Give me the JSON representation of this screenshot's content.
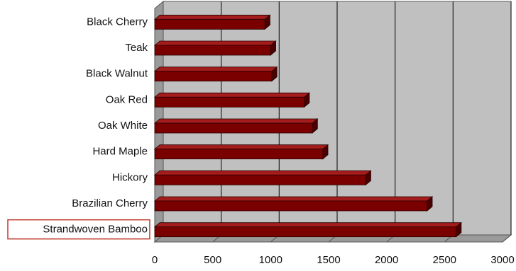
{
  "chart_data": {
    "type": "bar",
    "orientation": "horizontal",
    "categories": [
      "Black Cherry",
      "Teak",
      "Black Walnut",
      "Oak Red",
      "Oak White",
      "Hard Maple",
      "Hickory",
      "Brazilian Cherry",
      "Strandwoven Bamboo"
    ],
    "values": [
      950,
      1000,
      1010,
      1290,
      1360,
      1450,
      1820,
      2350,
      2600
    ],
    "title": "",
    "xlabel": "",
    "ylabel": "",
    "xlim": [
      0,
      3000
    ],
    "xticks": [
      "0",
      "500",
      "1000",
      "1500",
      "2000",
      "2500",
      "3000"
    ],
    "grid": "vertical",
    "style": "3d",
    "highlighted_category": "Strandwoven Bamboo",
    "colors": {
      "bar_front": "#7a0000",
      "bar_top": "#a51c1c",
      "bar_side": "#4a0000",
      "plot_back": "#c0c0c0",
      "plot_floor": "#9a9a9a",
      "highlight_box": "#c0392b"
    }
  }
}
